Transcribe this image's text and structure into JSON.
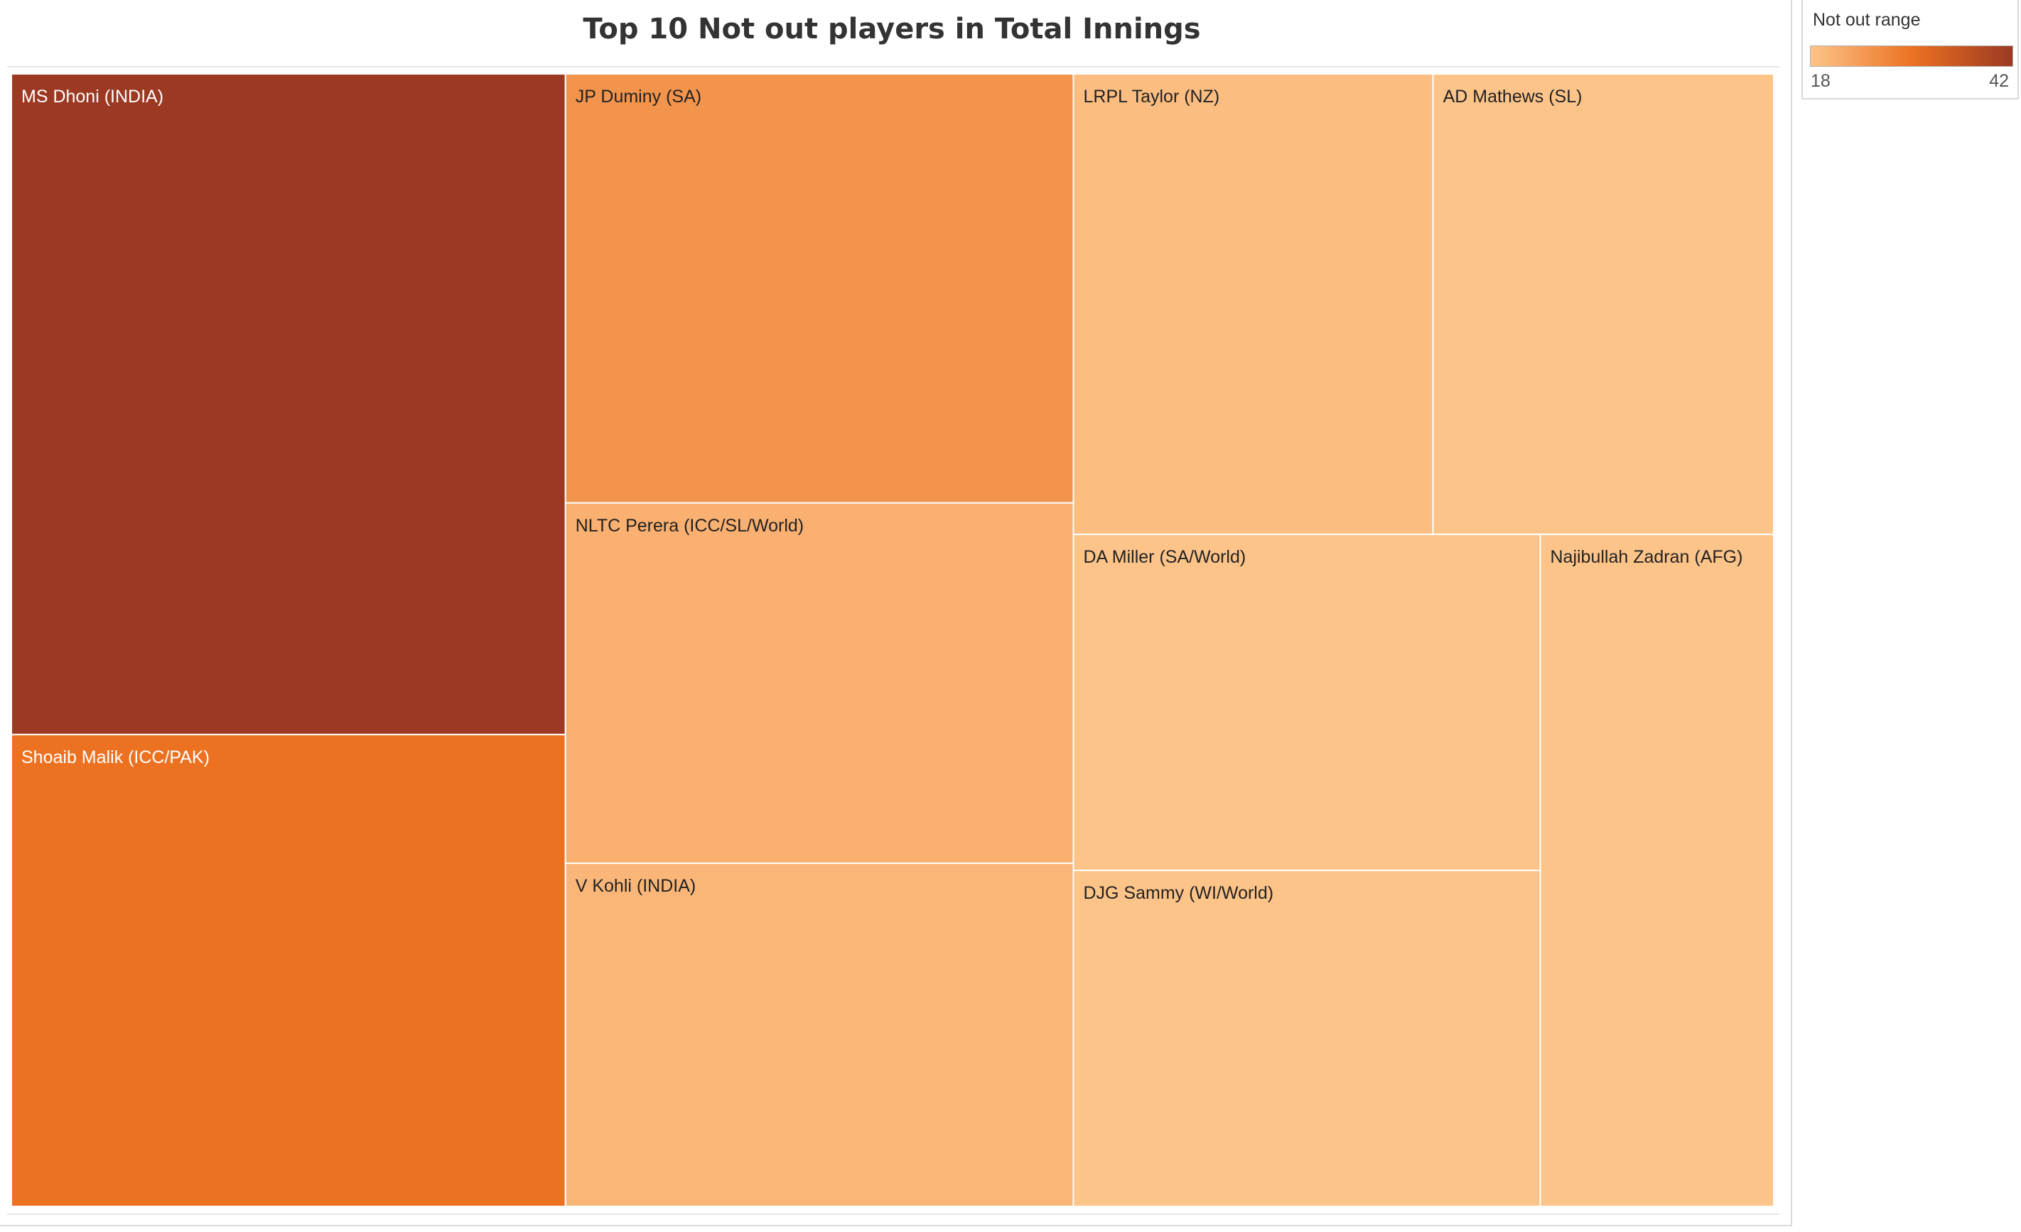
{
  "chart_data": {
    "type": "treemap",
    "title": "Top 10 Not out players in Total Innings",
    "legend": {
      "title": "Not out range",
      "min_label": "18",
      "max_label": "42",
      "min": 18,
      "max": 42,
      "color_low": "#fdc48a",
      "color_mid": "#ec7222",
      "color_high": "#9c3923",
      "placement": "top-right"
    },
    "items": [
      {
        "label": "MS Dhoni (INDIA)",
        "value": 42
      },
      {
        "label": "Shoaib Malik (ICC/PAK)",
        "value": 30
      },
      {
        "label": "JP Duminy (SA)",
        "value": 25
      },
      {
        "label": "NLTC Perera (ICC/SL/World)",
        "value": 21
      },
      {
        "label": "V Kohli (INDIA)",
        "value": 20
      },
      {
        "label": "LRPL Taylor (NZ)",
        "value": 19
      },
      {
        "label": "AD Mathews (SL)",
        "value": 18
      },
      {
        "label": "DA Miller (SA/World)",
        "value": 18
      },
      {
        "label": "DJG Sammy (WI/World)",
        "value": 18
      },
      {
        "label": "Najibullah Zadran (AFG)",
        "value": 18
      }
    ]
  }
}
